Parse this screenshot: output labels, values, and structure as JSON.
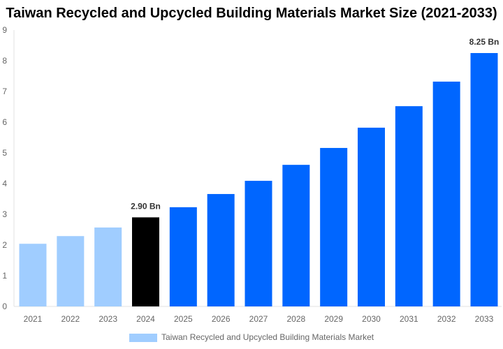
{
  "chart_data": {
    "type": "bar",
    "title": "Taiwan Recycled and Upcycled Building Materials Market Size (2021-2033)",
    "categories": [
      "2021",
      "2022",
      "2023",
      "2024",
      "2025",
      "2026",
      "2027",
      "2028",
      "2029",
      "2030",
      "2031",
      "2032",
      "2033"
    ],
    "series": [
      {
        "name": "Taiwan Recycled and Upcycled Building Materials Market",
        "values": [
          2.04,
          2.29,
          2.57,
          2.9,
          3.23,
          3.66,
          4.09,
          4.61,
          5.16,
          5.82,
          6.52,
          7.32,
          8.25
        ]
      }
    ],
    "bar_colors": [
      "#a0cdff",
      "#a0cdff",
      "#a0cdff",
      "#000000",
      "#0066ff",
      "#0066ff",
      "#0066ff",
      "#0066ff",
      "#0066ff",
      "#0066ff",
      "#0066ff",
      "#0066ff",
      "#0066ff"
    ],
    "data_labels": {
      "3": "2.90 Bn",
      "12": "8.25 Bn"
    },
    "ylim": [
      0,
      9
    ],
    "yticks": [
      "0",
      "1",
      "2",
      "3",
      "4",
      "5",
      "6",
      "7",
      "8",
      "9"
    ],
    "grid": false,
    "legend": {
      "placement": "bottom",
      "color": "#a0cdff"
    }
  }
}
